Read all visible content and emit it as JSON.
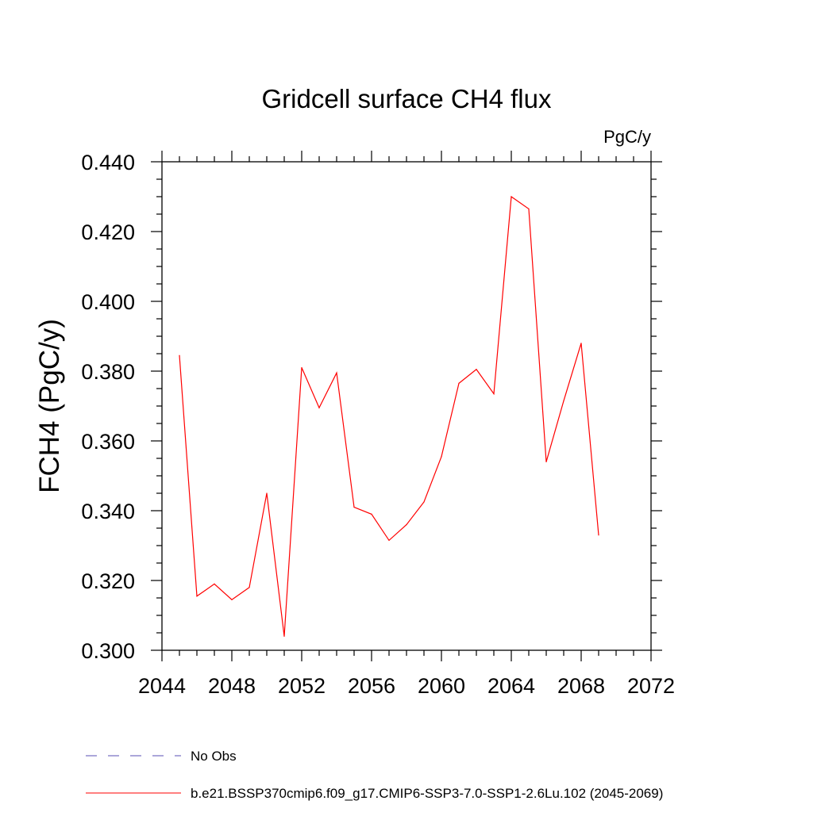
{
  "chart_data": {
    "type": "line",
    "title": "Gridcell surface CH4 flux",
    "units": "PgC/y",
    "xlabel": "",
    "ylabel": "FCH4  (PgC/y)",
    "xlim": [
      2044,
      2072
    ],
    "ylim": [
      0.3,
      0.44
    ],
    "xticks": [
      2044,
      2048,
      2052,
      2056,
      2060,
      2064,
      2068,
      2072
    ],
    "yticks": [
      "0.300",
      "0.320",
      "0.340",
      "0.360",
      "0.380",
      "0.400",
      "0.420",
      "0.440"
    ],
    "grid": false,
    "series": [
      {
        "name": "b.e21.BSSP370cmip6.f09_g17.CMIP6-SSP3-7.0-SSP1-2.6Lu.102 (2045-2069)",
        "color": "#ff0000",
        "style": "solid",
        "x": [
          2045,
          2046,
          2047,
          2048,
          2049,
          2050,
          2051,
          2052,
          2053,
          2054,
          2055,
          2056,
          2057,
          2058,
          2059,
          2060,
          2061,
          2062,
          2063,
          2064,
          2065,
          2066,
          2067,
          2068,
          2069
        ],
        "y": [
          0.3845,
          0.3155,
          0.319,
          0.3145,
          0.318,
          0.345,
          0.304,
          0.381,
          0.3695,
          0.3795,
          0.341,
          0.339,
          0.3315,
          0.336,
          0.3425,
          0.3555,
          0.3765,
          0.3805,
          0.3735,
          0.43,
          0.4265,
          0.354,
          0.3715,
          0.388,
          0.333
        ]
      }
    ],
    "legend": [
      {
        "label": "No Obs",
        "color": "#5a4fb5",
        "style": "dashed"
      },
      {
        "label": "b.e21.BSSP370cmip6.f09_g17.CMIP6-SSP3-7.0-SSP1-2.6Lu.102 (2045-2069)",
        "color": "#ff0000",
        "style": "solid"
      }
    ],
    "legend_position": "bottom"
  }
}
